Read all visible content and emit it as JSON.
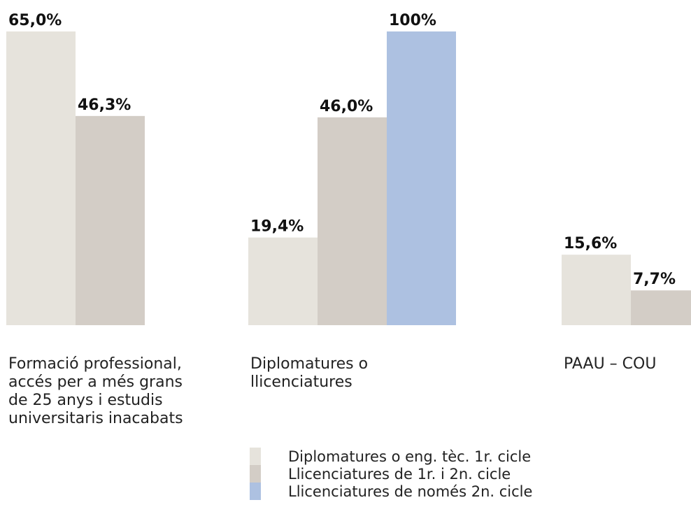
{
  "chart_data": {
    "type": "bar",
    "categories": [
      "Formació professional,\naccés per a més grans\nde 25 anys i estudis\nuniversitaris inacabats",
      "Diplomatures o\nllicenciatures",
      "PAAU – COU"
    ],
    "series": [
      {
        "name": "Diplomatures o eng. tèc. 1r. cicle",
        "color": "#e6e3dc",
        "values": [
          65.0,
          19.4,
          15.6
        ],
        "value_labels": [
          "65,0%",
          "19,4%",
          "15,6%"
        ]
      },
      {
        "name": "Llicenciatures de 1r. i 2n. cicle",
        "color": "#d3cdc6",
        "values": [
          46.3,
          46.0,
          7.7
        ],
        "value_labels": [
          "46,3%",
          "46,0%",
          "7,7%"
        ]
      },
      {
        "name": "Llicenciatures de només 2n. cicle",
        "color": "#adc1e1",
        "values": [
          null,
          100,
          null
        ],
        "value_labels": [
          null,
          "100%",
          null
        ]
      }
    ],
    "ylim": [
      0,
      65
    ]
  }
}
